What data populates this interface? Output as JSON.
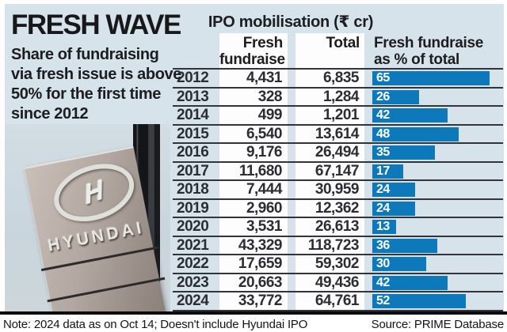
{
  "colors": {
    "panel_bg": "#d6e3ea",
    "bar_blue": "#0e79ba",
    "rule_dark": "#33343a",
    "text_dark": "#1d1d20",
    "photo_sky": "#cdd9df",
    "sign_taupe": "#a89e97"
  },
  "header": {
    "title": "FRESH WAVE",
    "subtitle_lines": [
      "Share of fundraising",
      "via fresh issue is above",
      "50% for the first time",
      "since 2012"
    ]
  },
  "table": {
    "group_header": "IPO mobilisation (₹ cr)",
    "fresh_header_lines": [
      "Fresh",
      "fundraise"
    ],
    "total_header": "Total",
    "pct_header_lines": [
      "Fresh fundraise",
      "as % of total"
    ],
    "rows": [
      {
        "year": "2012",
        "fresh": "4,431",
        "total": "6,835",
        "pct": 65
      },
      {
        "year": "2013",
        "fresh": "328",
        "total": "1,284",
        "pct": 26
      },
      {
        "year": "2014",
        "fresh": "499",
        "total": "1,201",
        "pct": 42
      },
      {
        "year": "2015",
        "fresh": "6,540",
        "total": "13,614",
        "pct": 48
      },
      {
        "year": "2016",
        "fresh": "9,176",
        "total": "26,494",
        "pct": 35
      },
      {
        "year": "2017",
        "fresh": "11,680",
        "total": "67,147",
        "pct": 17
      },
      {
        "year": "2018",
        "fresh": "7,444",
        "total": "30,959",
        "pct": 24
      },
      {
        "year": "2019",
        "fresh": "2,960",
        "total": "12,362",
        "pct": 24
      },
      {
        "year": "2020",
        "fresh": "3,531",
        "total": "26,613",
        "pct": 13
      },
      {
        "year": "2021",
        "fresh": "43,329",
        "total": "118,723",
        "pct": 36
      },
      {
        "year": "2022",
        "fresh": "17,659",
        "total": "59,302",
        "pct": 30
      },
      {
        "year": "2023",
        "fresh": "20,663",
        "total": "49,436",
        "pct": 42
      },
      {
        "year": "2024",
        "fresh": "33,772",
        "total": "64,761",
        "pct": 52
      }
    ]
  },
  "photo": {
    "brand": "HYUNDAI",
    "logo_letter": "H"
  },
  "footer": {
    "note": "Note: 2024 data as on Oct 14; Doesn't include Hyundai IPO",
    "source": "Source: PRIME Database"
  },
  "chart_data": {
    "type": "bar",
    "title": "FRESH WAVE",
    "subtitle": "Share of fundraising via fresh issue is above 50% for the first time since 2012",
    "group_header": "IPO mobilisation (₹ cr)",
    "unit": "₹ cr",
    "categories": [
      2012,
      2013,
      2014,
      2015,
      2016,
      2017,
      2018,
      2019,
      2020,
      2021,
      2022,
      2023,
      2024
    ],
    "series": [
      {
        "name": "Fresh fundraise",
        "values": [
          4431,
          328,
          499,
          6540,
          9176,
          11680,
          7444,
          2960,
          3531,
          43329,
          17659,
          20663,
          33772
        ]
      },
      {
        "name": "Total",
        "values": [
          6835,
          1284,
          1201,
          13614,
          26494,
          67147,
          30959,
          12362,
          26613,
          118723,
          59302,
          49436,
          64761
        ]
      },
      {
        "name": "Fresh fundraise as % of total",
        "values": [
          65,
          26,
          42,
          48,
          35,
          17,
          24,
          24,
          13,
          36,
          30,
          42,
          52
        ]
      }
    ],
    "bar_series_plotted": "Fresh fundraise as % of total",
    "bar_orientation": "horizontal",
    "xlim": [
      0,
      72
    ],
    "grid": false,
    "legend": "none",
    "note": "Note: 2024 data as on Oct 14; Doesn't include Hyundai IPO",
    "source": "Source: PRIME Database"
  }
}
